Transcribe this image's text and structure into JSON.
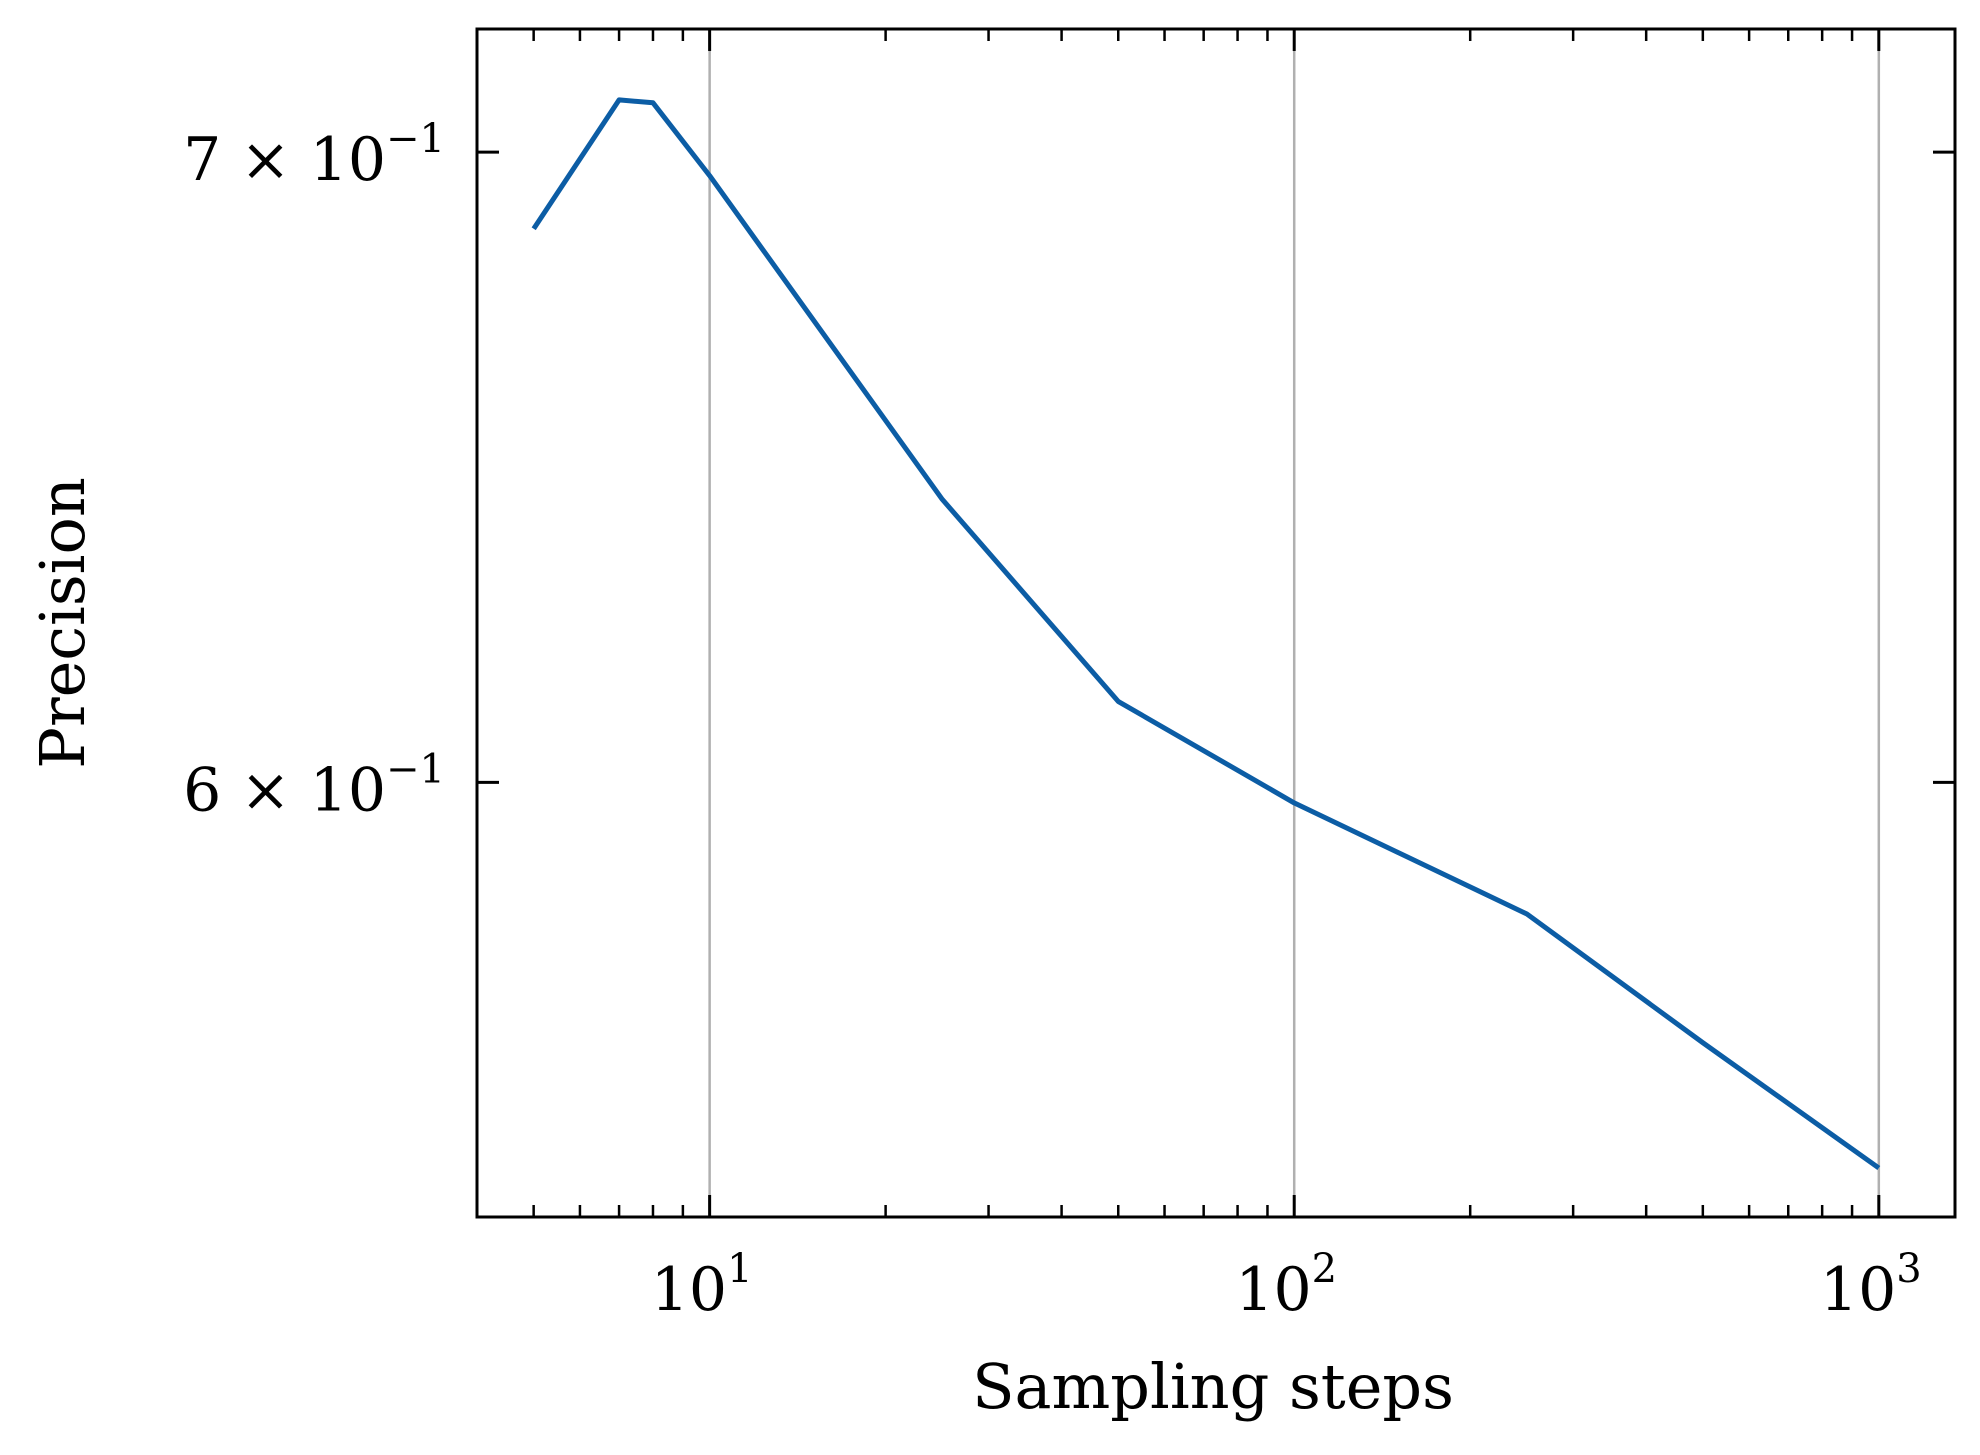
{
  "chart_data": {
    "type": "line",
    "xlabel": "Sampling steps",
    "ylabel": "Precision",
    "xscale": "log",
    "yscale": "log",
    "xlim": [
      4.0,
      1350
    ],
    "ylim": [
      0.5395,
      0.7214
    ],
    "grid": "vertical-major",
    "line_color": "#0c5da5",
    "x_ticks": [
      {
        "value": 10,
        "base": "10",
        "exp": "1"
      },
      {
        "value": 100,
        "base": "10",
        "exp": "2"
      },
      {
        "value": 1000,
        "base": "10",
        "exp": "3"
      }
    ],
    "y_ticks": [
      {
        "value": 0.7,
        "base": "7 × 10",
        "exp": "−1"
      },
      {
        "value": 0.6,
        "base": "6 × 10",
        "exp": "−1"
      }
    ],
    "series": [
      {
        "x": [
          5,
          7,
          8,
          10,
          25,
          50,
          100,
          250,
          500,
          1000
        ],
        "y": [
          0.687,
          0.709,
          0.7085,
          0.696,
          0.643,
          0.612,
          0.597,
          0.581,
          0.563,
          0.546
        ]
      }
    ]
  }
}
